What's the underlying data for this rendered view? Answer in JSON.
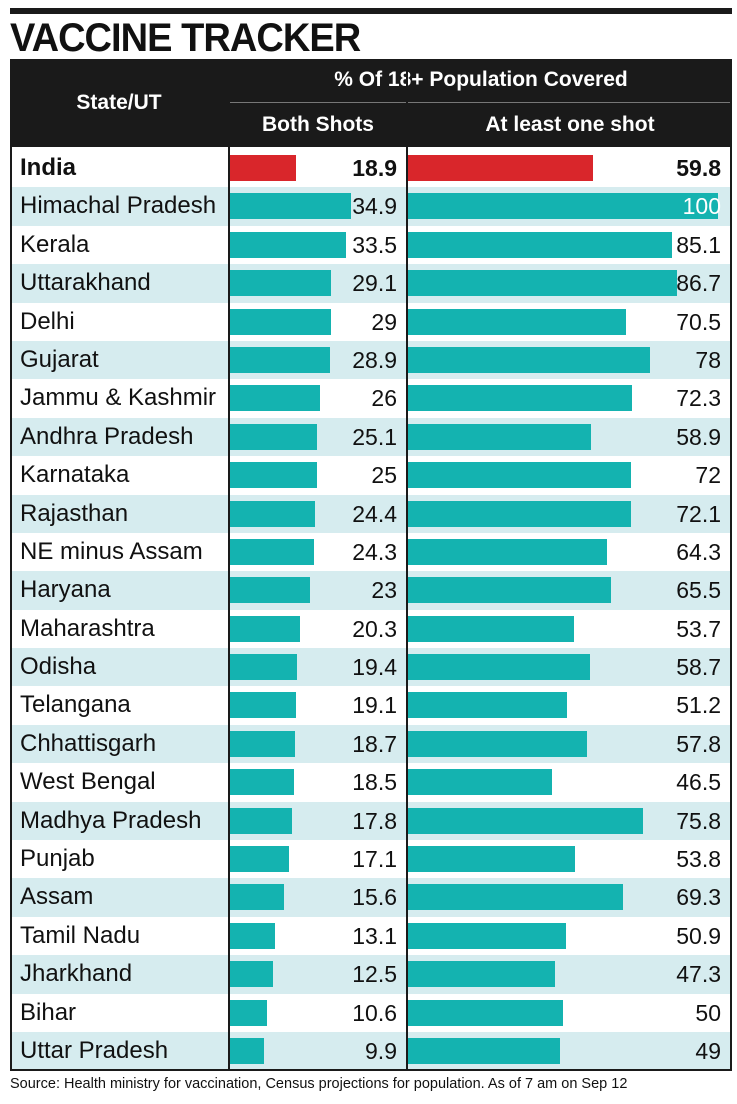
{
  "title": "VACCINE TRACKER",
  "header": {
    "state_label": "State/UT",
    "group_label": "% Of 18+ Population Covered",
    "both_label": "Both Shots",
    "one_label": "At least one shot"
  },
  "source": "Source: Health ministry for vaccination, Census projections for population. As of 7 am on Sep 12",
  "colors": {
    "highlight_bar": "#d9262b",
    "bar": "#14b3b0",
    "alt_row": "#d6ecef",
    "header_bg": "#1a1a1a"
  },
  "chart_data": {
    "type": "bar",
    "orientation": "horizontal",
    "categories": [
      "India",
      "Himachal Pradesh",
      "Kerala",
      "Uttarakhand",
      "Delhi",
      "Gujarat",
      "Jammu & Kashmir",
      "Andhra Pradesh",
      "Karnataka",
      "Rajasthan",
      "NE minus Assam",
      "Haryana",
      "Maharashtra",
      "Odisha",
      "Telangana",
      "Chhattisgarh",
      "West Bengal",
      "Madhya Pradesh",
      "Punjab",
      "Assam",
      "Tamil Nadu",
      "Jharkhand",
      "Bihar",
      "Uttar Pradesh"
    ],
    "series": [
      {
        "name": "Both Shots",
        "values": [
          18.9,
          34.9,
          33.5,
          29.1,
          29,
          28.9,
          26,
          25.1,
          25,
          24.4,
          24.3,
          23,
          20.3,
          19.4,
          19.1,
          18.7,
          18.5,
          17.8,
          17.1,
          15.6,
          13.1,
          12.5,
          10.6,
          9.9
        ],
        "labels": [
          "18.9",
          "34.9",
          "33.5",
          "29.1",
          "29",
          "28.9",
          "26",
          "25.1",
          "25",
          "24.4",
          "24.3",
          "23",
          "20.3",
          "19.4",
          "19.1",
          "18.7",
          "18.5",
          "17.8",
          "17.1",
          "15.6",
          "13.1",
          "12.5",
          "10.6",
          "9.9"
        ],
        "xlim": [
          0,
          36
        ]
      },
      {
        "name": "At least one shot",
        "values": [
          59.8,
          100,
          85.1,
          86.7,
          70.5,
          78,
          72.3,
          58.9,
          72,
          72.1,
          64.3,
          65.5,
          53.7,
          58.7,
          51.2,
          57.8,
          46.5,
          75.8,
          53.8,
          69.3,
          50.9,
          47.3,
          50,
          49
        ],
        "labels": [
          "59.8",
          "100",
          "85.1",
          "86.7",
          "70.5",
          "78",
          "72.3",
          "58.9",
          "72",
          "72.1",
          "64.3",
          "65.5",
          "53.7",
          "58.7",
          "51.2",
          "57.8",
          "46.5",
          "75.8",
          "53.8",
          "69.3",
          "50.9",
          "47.3",
          "50",
          "49"
        ],
        "xlim": [
          0,
          101
        ]
      }
    ],
    "highlight_category": "India"
  }
}
